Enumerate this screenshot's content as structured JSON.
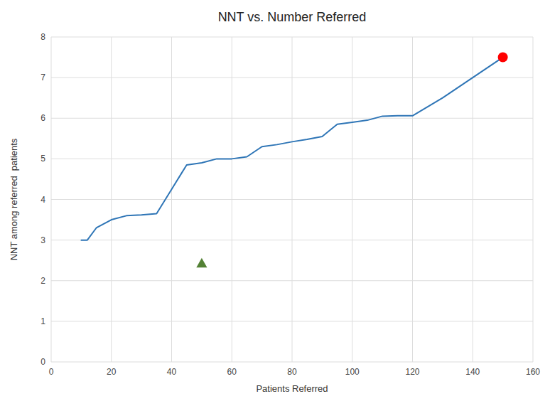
{
  "chart_data": {
    "type": "line",
    "title": "NNT vs. Number Referred",
    "xlabel": "Patients Referred",
    "ylabel": "NNT among referred  patients",
    "series": [
      {
        "type": "line",
        "color": "#2e75b6",
        "x": [
          10,
          12,
          15,
          20,
          25,
          30,
          35,
          40,
          45,
          50,
          55,
          60,
          65,
          70,
          75,
          80,
          85,
          90,
          95,
          100,
          105,
          110,
          115,
          120,
          130,
          140,
          150
        ],
        "values": [
          3.0,
          3.0,
          3.3,
          3.5,
          3.6,
          3.62,
          3.65,
          4.25,
          4.85,
          4.9,
          5.0,
          5.0,
          5.05,
          5.3,
          5.35,
          5.42,
          5.48,
          5.55,
          5.85,
          5.9,
          5.95,
          6.05,
          6.06,
          6.06,
          6.5,
          7.0,
          7.5
        ]
      },
      {
        "type": "scatter",
        "marker": "circle",
        "color": "#ff0000",
        "x": [
          150
        ],
        "values": [
          7.5
        ]
      },
      {
        "type": "scatter",
        "marker": "triangle",
        "color": "#538135",
        "x": [
          50
        ],
        "values": [
          2.42
        ]
      }
    ],
    "xlim": [
      0,
      160
    ],
    "ylim": [
      0,
      8
    ],
    "xticks": [
      0,
      20,
      40,
      60,
      80,
      100,
      120,
      140,
      160
    ],
    "yticks": [
      0,
      1,
      2,
      3,
      4,
      5,
      6,
      7,
      8
    ],
    "grid": true
  }
}
